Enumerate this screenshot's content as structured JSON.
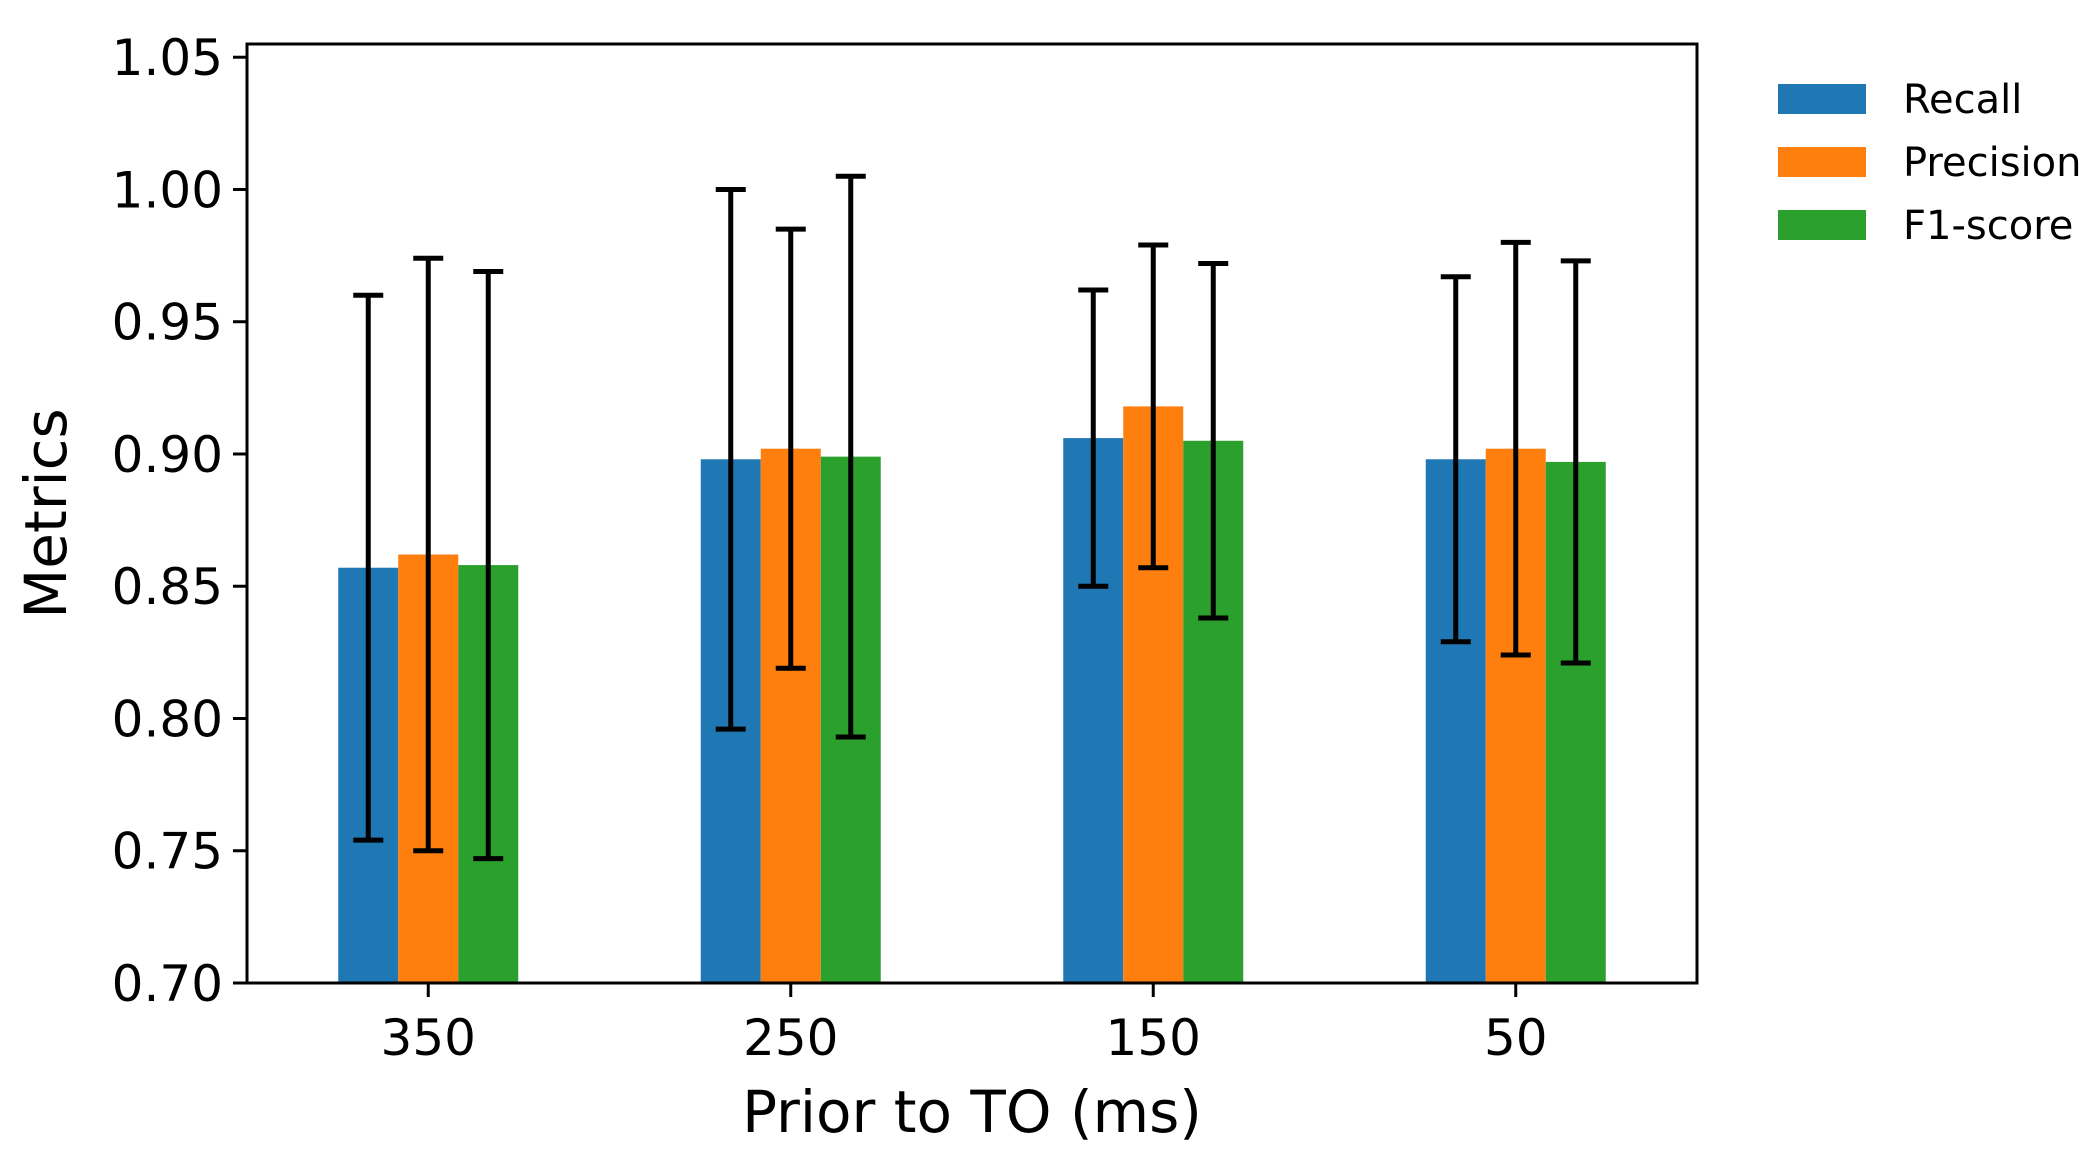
{
  "chart_data": {
    "type": "bar",
    "title": "",
    "xlabel": "Prior to TO (ms)",
    "ylabel": "Metrics",
    "ylim": [
      0.7,
      1.055
    ],
    "yticks": [
      "0.70",
      "0.75",
      "0.80",
      "0.85",
      "0.90",
      "0.95",
      "1.00",
      "1.05"
    ],
    "categories": [
      "350",
      "250",
      "150",
      "50"
    ],
    "legend_position": "outside-top-right",
    "grid": false,
    "series": [
      {
        "name": "Recall",
        "color": "#1f77b4",
        "values": [
          0.857,
          0.898,
          0.906,
          0.898
        ],
        "errors": [
          0.103,
          0.102,
          0.056,
          0.069
        ]
      },
      {
        "name": "Precision",
        "color": "#ff7f0e",
        "values": [
          0.862,
          0.902,
          0.918,
          0.902
        ],
        "errors": [
          0.112,
          0.083,
          0.061,
          0.078
        ]
      },
      {
        "name": "F1-score",
        "color": "#2ca02c",
        "values": [
          0.858,
          0.899,
          0.905,
          0.897
        ],
        "errors": [
          0.111,
          0.106,
          0.067,
          0.076
        ]
      }
    ]
  }
}
